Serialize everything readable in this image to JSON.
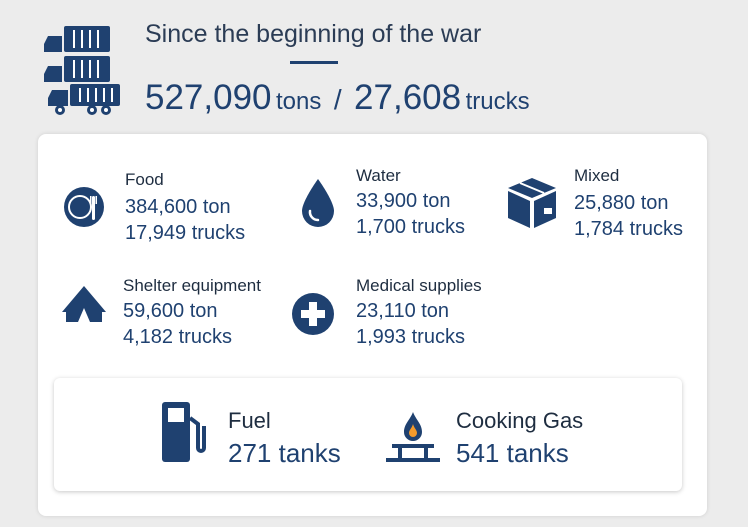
{
  "header": {
    "title": "Since the beginning of the war",
    "total_tons": "527,090",
    "tons_unit": "tons",
    "separator": "/",
    "total_trucks": "27,608",
    "trucks_unit": "trucks"
  },
  "categories": [
    {
      "label": "Food",
      "tons": "384,600 ton",
      "trucks": "17,949 trucks",
      "icon": "food-plate-icon"
    },
    {
      "label": "Water",
      "tons": "33,900 ton",
      "trucks": "1,700 trucks",
      "icon": "water-drop-icon"
    },
    {
      "label": "Mixed",
      "tons": "25,880 ton",
      "trucks": "1,784 trucks",
      "icon": "box-icon"
    },
    {
      "label": "Shelter equipment",
      "tons": "59,600 ton",
      "trucks": "4,182 trucks",
      "icon": "tent-icon"
    },
    {
      "label": "Medical supplies",
      "tons": "23,110 ton",
      "trucks": "1,993 trucks",
      "icon": "medical-cross-icon"
    }
  ],
  "fuel": [
    {
      "label": "Fuel",
      "value": "271 tanks",
      "icon": "fuel-pump-icon"
    },
    {
      "label": "Cooking Gas",
      "value": "541 tanks",
      "icon": "gas-burner-icon"
    }
  ],
  "colors": {
    "accent": "#1f4170",
    "background": "#ececec",
    "card": "#ffffff"
  }
}
